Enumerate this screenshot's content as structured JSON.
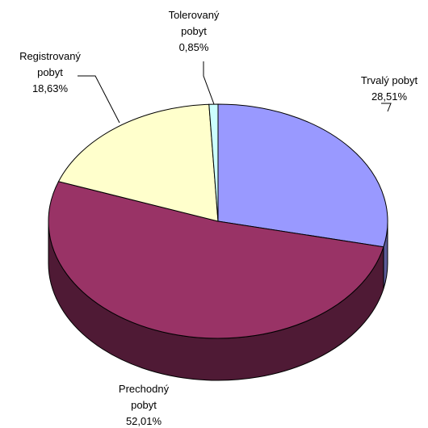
{
  "chart_data": {
    "type": "pie",
    "three_d": true,
    "categories": [
      "Trvalý pobyt",
      "Prechodný pobyt",
      "Registrovaný pobyt",
      "Tolerovaný pobyt"
    ],
    "values": [
      28.51,
      52.01,
      18.63,
      0.85
    ],
    "value_labels": [
      "28,51%",
      "52,01%",
      "18,63%",
      "0,85%"
    ],
    "label_lines": [
      [
        "Trvalý pobyt"
      ],
      [
        "Prechodný",
        "pobyt"
      ],
      [
        "Registrovaný",
        "pobyt"
      ],
      [
        "Tolerovaný",
        "pobyt"
      ]
    ],
    "colors": [
      "#9999ff",
      "#993366",
      "#ffffcc",
      "#ccffff"
    ],
    "side_colors": [
      "#5c5c99",
      "#4f1a35",
      "#99997a",
      "#7a9999"
    ],
    "legend": "none"
  }
}
